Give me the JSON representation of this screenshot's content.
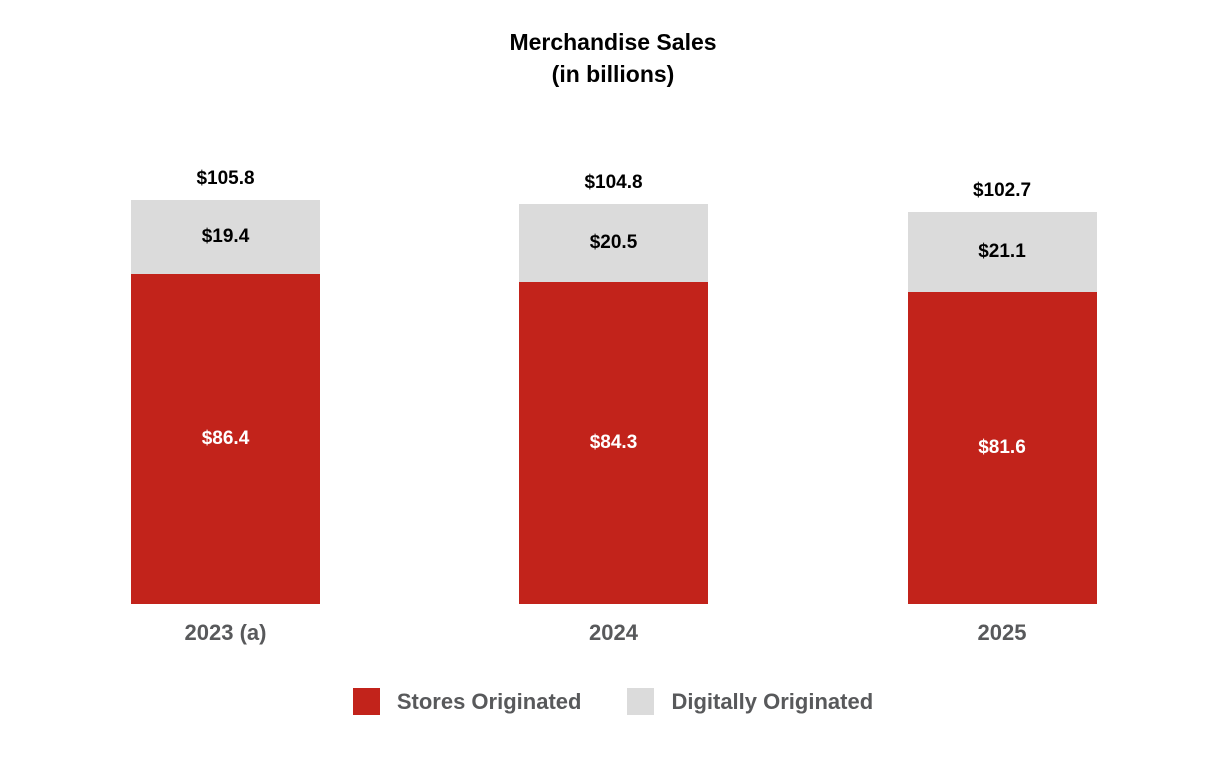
{
  "title": {
    "line1": "Merchandise Sales",
    "line2": "(in billions)"
  },
  "colors": {
    "stores": "#C2231B",
    "digital": "#DBDBDB",
    "axis_text": "#58595B",
    "value_text_dark": "#000000",
    "value_text_light": "#FFFFFF",
    "background": "#FFFFFF"
  },
  "chart_data": {
    "type": "bar",
    "stacked": true,
    "title": "Merchandise Sales (in billions)",
    "categories": [
      "2023 (a)",
      "2024",
      "2025"
    ],
    "series": [
      {
        "name": "Stores Originated",
        "color": "#C2231B",
        "values": [
          86.4,
          84.3,
          81.6
        ],
        "labels": [
          "$86.4",
          "$84.3",
          "$81.6"
        ],
        "label_color": "#FFFFFF"
      },
      {
        "name": "Digitally Originated",
        "color": "#DBDBDB",
        "values": [
          19.4,
          20.5,
          21.1
        ],
        "labels": [
          "$19.4",
          "$20.5",
          "$21.1"
        ],
        "label_color": "#000000"
      }
    ],
    "totals": [
      105.8,
      104.8,
      102.7
    ],
    "total_labels": [
      "$105.8",
      "$104.8",
      "$102.7"
    ],
    "xlabel": "",
    "ylabel": "",
    "axes_hidden": true,
    "grid": false,
    "legend_position": "bottom"
  },
  "legend": {
    "items": [
      {
        "label": "Stores Originated",
        "color": "#C2231B"
      },
      {
        "label": "Digitally Originated",
        "color": "#DBDBDB"
      }
    ]
  }
}
